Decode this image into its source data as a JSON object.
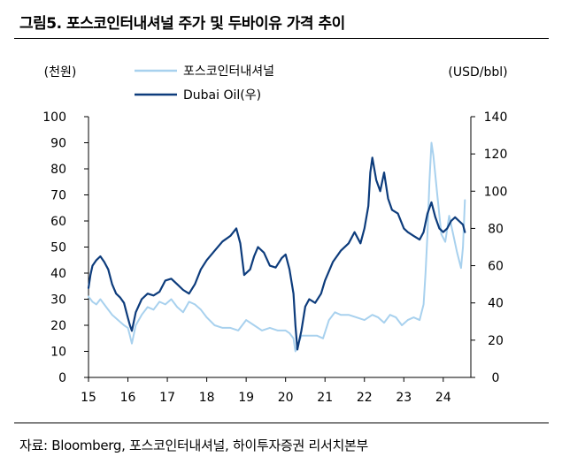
{
  "title": "그림5. 포스코인터내셔널 주가 및 두바이유 가격 추이",
  "source": "자료: Bloomberg, 포스코인터내셔널, 하이투자증권 리서치본부",
  "colors": {
    "posco": "#a8d1ee",
    "dubai": "#0d3c7c"
  },
  "chart_data": {
    "type": "line",
    "title": "그림5. 포스코인터내셔널 주가 및 두바이유 가격 추이",
    "left_axis_unit": "(천원)",
    "right_axis_unit": "(USD/bbl)",
    "left_ylim": [
      0,
      100
    ],
    "right_ylim": [
      0,
      140
    ],
    "left_ticks": [
      0,
      10,
      20,
      30,
      40,
      50,
      60,
      70,
      80,
      90,
      100
    ],
    "right_ticks": [
      0,
      20,
      40,
      60,
      80,
      100,
      120,
      140
    ],
    "x_tick_labels": [
      "15",
      "16",
      "17",
      "18",
      "19",
      "20",
      "21",
      "22",
      "23",
      "24"
    ],
    "x_range": [
      2015,
      2024.7
    ],
    "legend_position": "top-center",
    "series": [
      {
        "name": "포스코인터내셔널",
        "axis": "left",
        "color": "#a8d1ee",
        "x": [
          2015.0,
          2015.1,
          2015.2,
          2015.3,
          2015.45,
          2015.6,
          2015.75,
          2015.9,
          2016.0,
          2016.05,
          2016.1,
          2016.2,
          2016.35,
          2016.5,
          2016.65,
          2016.8,
          2016.95,
          2017.1,
          2017.25,
          2017.4,
          2017.55,
          2017.7,
          2017.85,
          2018.0,
          2018.2,
          2018.4,
          2018.6,
          2018.8,
          2019.0,
          2019.2,
          2019.4,
          2019.6,
          2019.8,
          2020.0,
          2020.1,
          2020.2,
          2020.25,
          2020.4,
          2020.6,
          2020.8,
          2020.95,
          2021.1,
          2021.25,
          2021.4,
          2021.6,
          2021.8,
          2022.0,
          2022.2,
          2022.35,
          2022.5,
          2022.65,
          2022.8,
          2022.95,
          2023.1,
          2023.25,
          2023.4,
          2023.5,
          2023.55,
          2023.6,
          2023.65,
          2023.7,
          2023.75,
          2023.85,
          2023.95,
          2024.05,
          2024.15,
          2024.25,
          2024.35,
          2024.45,
          2024.5,
          2024.55
        ],
        "values": [
          31,
          29,
          28,
          30,
          27,
          24,
          22,
          20,
          19,
          16,
          13,
          20,
          24,
          27,
          26,
          29,
          28,
          30,
          27,
          25,
          29,
          28,
          26,
          23,
          20,
          19,
          19,
          18,
          22,
          20,
          18,
          19,
          18,
          18,
          17,
          15,
          10,
          16,
          16,
          16,
          15,
          22,
          25,
          24,
          24,
          23,
          22,
          24,
          23,
          21,
          24,
          23,
          20,
          22,
          23,
          22,
          28,
          40,
          55,
          75,
          90,
          85,
          70,
          55,
          52,
          62,
          55,
          48,
          42,
          50,
          68
        ]
      },
      {
        "name": "Dubai Oil(우)",
        "axis": "right",
        "color": "#0d3c7c",
        "x": [
          2015.0,
          2015.05,
          2015.1,
          2015.2,
          2015.3,
          2015.4,
          2015.5,
          2015.6,
          2015.7,
          2015.8,
          2015.9,
          2016.0,
          2016.05,
          2016.1,
          2016.2,
          2016.35,
          2016.5,
          2016.65,
          2016.8,
          2016.95,
          2017.1,
          2017.25,
          2017.4,
          2017.55,
          2017.7,
          2017.85,
          2018.0,
          2018.2,
          2018.4,
          2018.6,
          2018.75,
          2018.85,
          2018.95,
          2019.1,
          2019.2,
          2019.3,
          2019.45,
          2019.6,
          2019.75,
          2019.9,
          2020.0,
          2020.1,
          2020.2,
          2020.25,
          2020.3,
          2020.4,
          2020.5,
          2020.6,
          2020.75,
          2020.9,
          2021.0,
          2021.2,
          2021.4,
          2021.6,
          2021.75,
          2021.9,
          2022.0,
          2022.1,
          2022.15,
          2022.2,
          2022.3,
          2022.4,
          2022.5,
          2022.6,
          2022.7,
          2022.85,
          2023.0,
          2023.1,
          2023.25,
          2023.4,
          2023.5,
          2023.6,
          2023.7,
          2023.8,
          2023.9,
          2024.0,
          2024.1,
          2024.2,
          2024.3,
          2024.4,
          2024.5,
          2024.55
        ],
        "values": [
          48,
          55,
          60,
          63,
          65,
          62,
          58,
          50,
          45,
          43,
          40,
          32,
          28,
          25,
          35,
          42,
          45,
          44,
          46,
          52,
          53,
          50,
          47,
          45,
          50,
          58,
          63,
          68,
          73,
          76,
          80,
          72,
          55,
          58,
          65,
          70,
          67,
          60,
          59,
          64,
          66,
          58,
          45,
          28,
          15,
          25,
          38,
          42,
          40,
          45,
          52,
          62,
          68,
          72,
          78,
          72,
          80,
          92,
          110,
          118,
          106,
          100,
          110,
          96,
          90,
          88,
          80,
          78,
          76,
          74,
          78,
          88,
          94,
          86,
          80,
          78,
          80,
          84,
          86,
          84,
          82,
          78
        ]
      }
    ]
  }
}
